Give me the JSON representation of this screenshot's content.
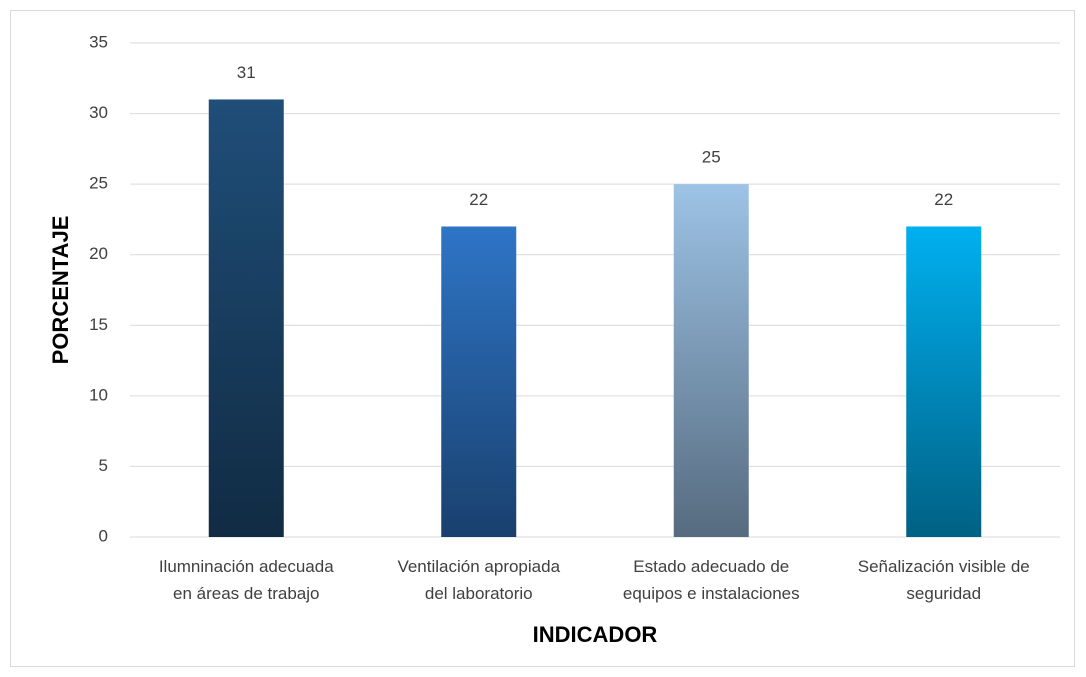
{
  "chart_data": {
    "type": "bar",
    "categories": [
      "Ilumninación adecuada\nen áreas de trabajo",
      "Ventilación apropiada\ndel laboratorio",
      "Estado adecuado de\nequipos e instalaciones",
      "Señalización visible de\nseguridad"
    ],
    "values": [
      31,
      22,
      25,
      22
    ],
    "colors": [
      "#1f4e79",
      "#2e75c6",
      "#9dc3e6",
      "#00b0f0"
    ],
    "xlabel": "INDICADOR",
    "ylabel": "PORCENTAJE",
    "ylim": [
      0,
      35
    ],
    "yticks": [
      0,
      5,
      10,
      15,
      20,
      25,
      30,
      35
    ],
    "grid": true
  }
}
